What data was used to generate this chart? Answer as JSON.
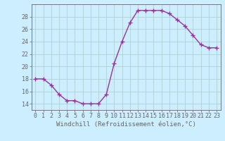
{
  "x": [
    0,
    1,
    2,
    3,
    4,
    5,
    6,
    7,
    8,
    9,
    10,
    11,
    12,
    13,
    14,
    15,
    16,
    17,
    18,
    19,
    20,
    21,
    22,
    23
  ],
  "y": [
    18,
    18,
    17,
    15.5,
    14.5,
    14.5,
    14,
    14,
    14,
    15.5,
    20.5,
    24,
    27,
    29,
    29,
    29,
    29,
    28.5,
    27.5,
    26.5,
    25,
    23.5,
    23,
    23
  ],
  "line_color": "#993399",
  "marker": "+",
  "marker_size": 4,
  "bg_color": "#cceeff",
  "grid_color": "#aacccc",
  "xlabel": "Windchill (Refroidissement éolien,°C)",
  "xlabel_fontsize": 6.5,
  "tick_fontsize": 6,
  "xlim": [
    -0.5,
    23.5
  ],
  "ylim": [
    13.0,
    30.0
  ],
  "yticks": [
    14,
    16,
    18,
    20,
    22,
    24,
    26,
    28
  ],
  "xticks": [
    0,
    1,
    2,
    3,
    4,
    5,
    6,
    7,
    8,
    9,
    10,
    11,
    12,
    13,
    14,
    15,
    16,
    17,
    18,
    19,
    20,
    21,
    22,
    23
  ],
  "spine_color": "#666666",
  "line_width": 1.0,
  "marker_edge_width": 1.0
}
